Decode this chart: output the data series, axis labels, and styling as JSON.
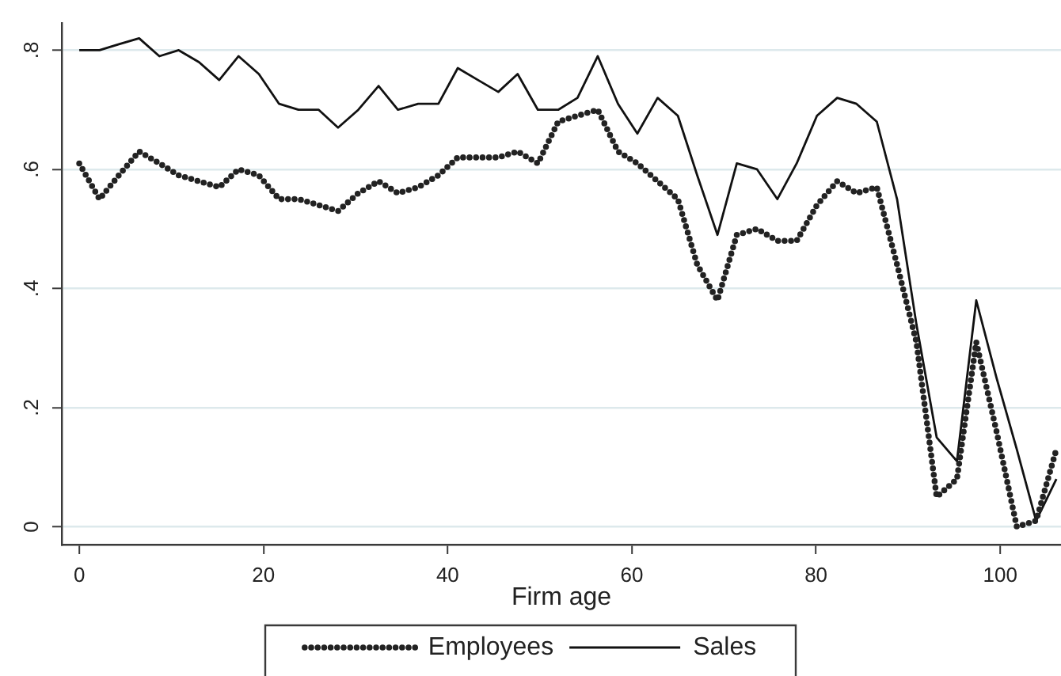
{
  "chart_data": {
    "type": "line",
    "xlabel": "Firm age",
    "x": [
      0,
      2.2,
      4.3,
      6.5,
      8.7,
      10.8,
      13.0,
      15.2,
      17.3,
      19.5,
      21.7,
      23.8,
      26.0,
      28.1,
      30.3,
      32.5,
      34.6,
      36.8,
      39.0,
      41.1,
      43.3,
      45.5,
      47.6,
      49.8,
      52.0,
      54.1,
      56.3,
      58.5,
      60.6,
      62.8,
      65.0,
      67.1,
      69.3,
      71.4,
      73.6,
      75.8,
      77.9,
      80.1,
      82.3,
      84.4,
      86.6,
      88.8,
      90.9,
      93.1,
      95.3,
      97.4,
      99.6,
      101.8,
      103.9,
      106.1
    ],
    "series": [
      {
        "name": "Employees",
        "color": "#222222",
        "line_style": "dotted",
        "values": [
          0.61,
          0.55,
          0.59,
          0.63,
          0.61,
          0.59,
          0.58,
          0.57,
          0.6,
          0.59,
          0.55,
          0.55,
          0.54,
          0.53,
          0.56,
          0.58,
          0.56,
          0.57,
          0.59,
          0.62,
          0.62,
          0.62,
          0.63,
          0.61,
          0.68,
          0.69,
          0.7,
          0.63,
          0.61,
          0.58,
          0.55,
          0.44,
          0.38,
          0.49,
          0.5,
          0.48,
          0.48,
          0.54,
          0.58,
          0.56,
          0.57,
          0.44,
          0.31,
          0.05,
          0.08,
          0.31,
          0.16,
          0.0,
          0.01,
          0.13
        ]
      },
      {
        "name": "Sales",
        "color": "#111111",
        "line_style": "solid",
        "values": [
          0.8,
          0.8,
          0.81,
          0.82,
          0.79,
          0.8,
          0.78,
          0.75,
          0.79,
          0.76,
          0.71,
          0.7,
          0.7,
          0.67,
          0.7,
          0.74,
          0.7,
          0.71,
          0.71,
          0.77,
          0.75,
          0.73,
          0.76,
          0.7,
          0.7,
          0.72,
          0.79,
          0.71,
          0.66,
          0.72,
          0.69,
          0.59,
          0.49,
          0.61,
          0.6,
          0.55,
          0.61,
          0.69,
          0.72,
          0.71,
          0.68,
          0.55,
          0.34,
          0.15,
          0.11,
          0.38,
          0.25,
          0.13,
          0.01,
          0.08
        ]
      }
    ],
    "xlim": [
      -1.9,
      106.6
    ],
    "xticks": [
      0,
      20,
      40,
      60,
      80,
      100
    ],
    "ylim": [
      -0.03,
      0.845
    ],
    "yticks": [
      0,
      {
        "value": 0.2,
        "label": ".2"
      },
      {
        "value": 0.4,
        "label": ".4"
      },
      {
        "value": 0.6,
        "label": ".6"
      },
      {
        "value": 0.8,
        "label": ".8"
      }
    ],
    "grid": "y",
    "legend": "bottom"
  }
}
